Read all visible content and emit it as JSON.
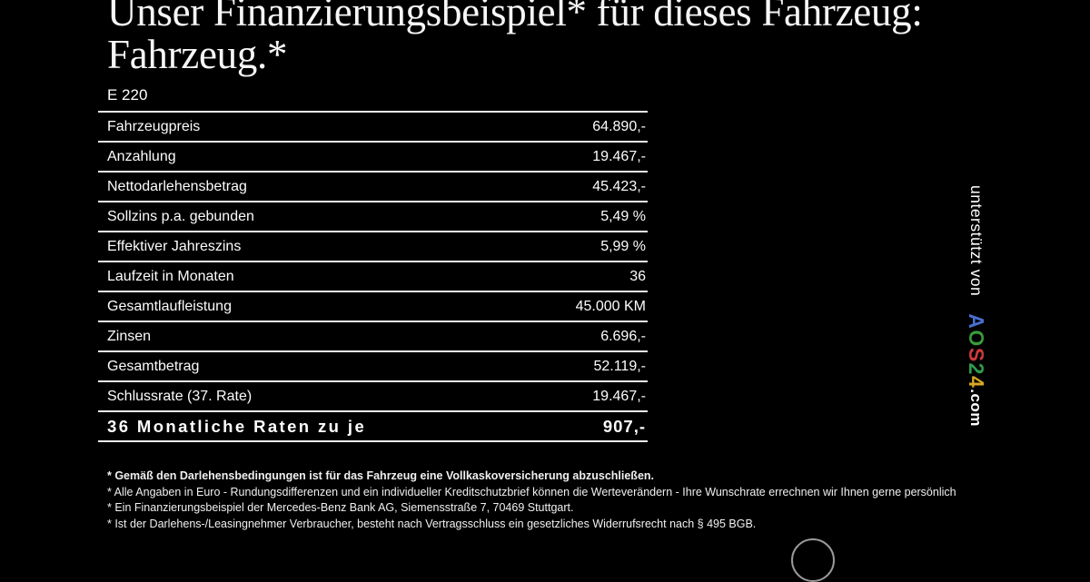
{
  "title": {
    "line1": "Unser Finanzierungsbeispiel* für dieses Fahrzeug:",
    "line2": "Fahrzeug.*"
  },
  "model": "E 220",
  "table": {
    "rows": [
      {
        "label": "Fahrzeugpreis",
        "value": "64.890,-"
      },
      {
        "label": "Anzahlung",
        "value": "19.467,-"
      },
      {
        "label": "Nettodarlehensbetrag",
        "value": "45.423,-"
      },
      {
        "label": "Sollzins p.a. gebunden",
        "value": "5,49 %"
      },
      {
        "label": "Effektiver Jahreszins",
        "value": "5,99 %"
      },
      {
        "label": "Laufzeit in Monaten",
        "value": "36"
      },
      {
        "label": "Gesamtlaufleistung",
        "value": "45.000 KM"
      },
      {
        "label": "Zinsen",
        "value": "6.696,-"
      },
      {
        "label": "Gesamtbetrag",
        "value": "52.119,-"
      },
      {
        "label": "Schlussrate (37. Rate)",
        "value": "19.467,-"
      },
      {
        "label": "36 Monatliche Raten zu je",
        "value": "907,-"
      }
    ]
  },
  "footnotes": [
    "* Gemäß den Darlehensbedingungen ist für das Fahrzeug eine Vollkaskoversicherung abzuschließen.",
    "* Alle Angaben in Euro - Rundungsdifferenzen und ein individueller Kreditschutzbrief können die Werteverändern - Ihre Wunschrate errechnen wir Ihnen gerne persönlich",
    "* Ein Finanzierungsbeispiel der Mercedes-Benz Bank AG, Siemensstraße 7, 70469 Stuttgart.",
    "* Ist der Darlehens-/Leasingnehmer Verbraucher, besteht nach Vertragsschluss ein gesetzliches Widerrufsrecht nach § 495 BGB."
  ],
  "sidebar": {
    "supported_by": "unterstützt von",
    "logo": {
      "letters": [
        {
          "char": "A",
          "color": "#4a6fd0"
        },
        {
          "char": "O",
          "color": "#3a9a3a"
        },
        {
          "char": "S",
          "color": "#cc3a3a"
        },
        {
          "char": "2",
          "color": "#2f9a4a"
        },
        {
          "char": "4",
          "color": "#d8a826"
        }
      ],
      "suffix": ".com"
    }
  },
  "colors": {
    "background": "#000000",
    "text": "#f4f4f4",
    "line": "#ededed"
  }
}
